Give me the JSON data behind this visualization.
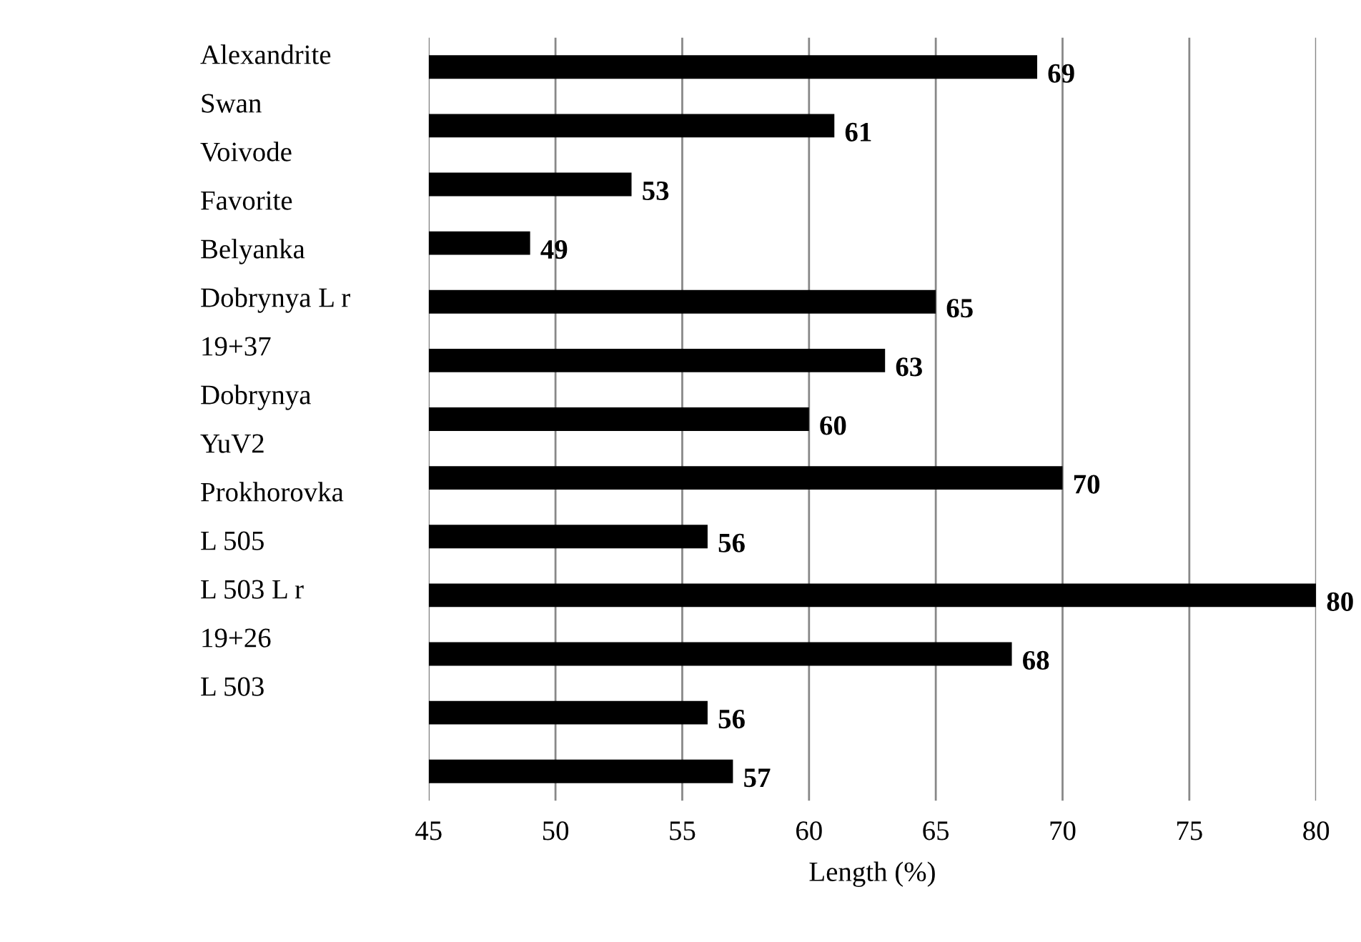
{
  "chart_data": {
    "type": "bar",
    "orientation": "horizontal",
    "xlabel": "Length (%)",
    "categories": [
      null,
      null,
      null,
      null,
      null,
      null,
      null,
      null,
      null,
      null,
      null,
      null,
      null
    ],
    "annotations": [
      "Alexandrite",
      "Swan",
      "Voivode",
      "Favorite",
      "Belyanka",
      "Dobrynya L r",
      "19+37",
      "Dobrynya",
      "YuV2",
      "Prokhorovka",
      "L 505",
      "L 503 L r",
      "19+26",
      "L 503"
    ],
    "values": [
      69,
      61,
      53,
      49,
      65,
      63,
      60,
      70,
      56,
      80,
      68,
      56,
      57
    ],
    "color": "#000000",
    "xlim": [
      45,
      80
    ],
    "xticks": [
      45,
      50,
      55,
      60,
      65,
      70,
      75,
      80
    ],
    "grid": "x",
    "data_labels": true
  }
}
